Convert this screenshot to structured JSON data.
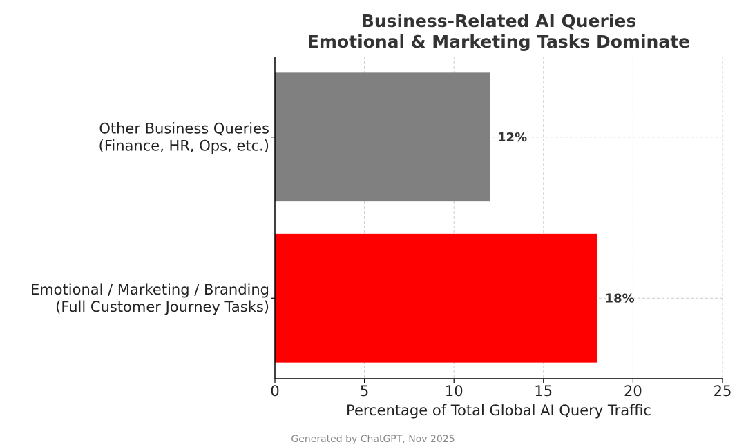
{
  "chart_data": {
    "type": "bar",
    "orientation": "horizontal",
    "title": [
      "Business-Related AI Queries",
      "Emotional & Marketing Tasks Dominate"
    ],
    "xlabel": "Percentage of Total Global AI Query Traffic",
    "ylabel": "",
    "xlim": [
      0,
      25
    ],
    "xticks": [
      0,
      5,
      10,
      15,
      20,
      25
    ],
    "grid": true,
    "categories": [
      [
        "Emotional / Marketing / Branding",
        "(Full Customer Journey Tasks)"
      ],
      [
        "Other Business Queries",
        "(Finance, HR, Ops, etc.)"
      ]
    ],
    "values": [
      18,
      12
    ],
    "value_labels": [
      "18%",
      "12%"
    ],
    "colors": [
      "#ff0000",
      "#808080"
    ],
    "footnote": "Generated by ChatGPT, Nov 2025"
  }
}
